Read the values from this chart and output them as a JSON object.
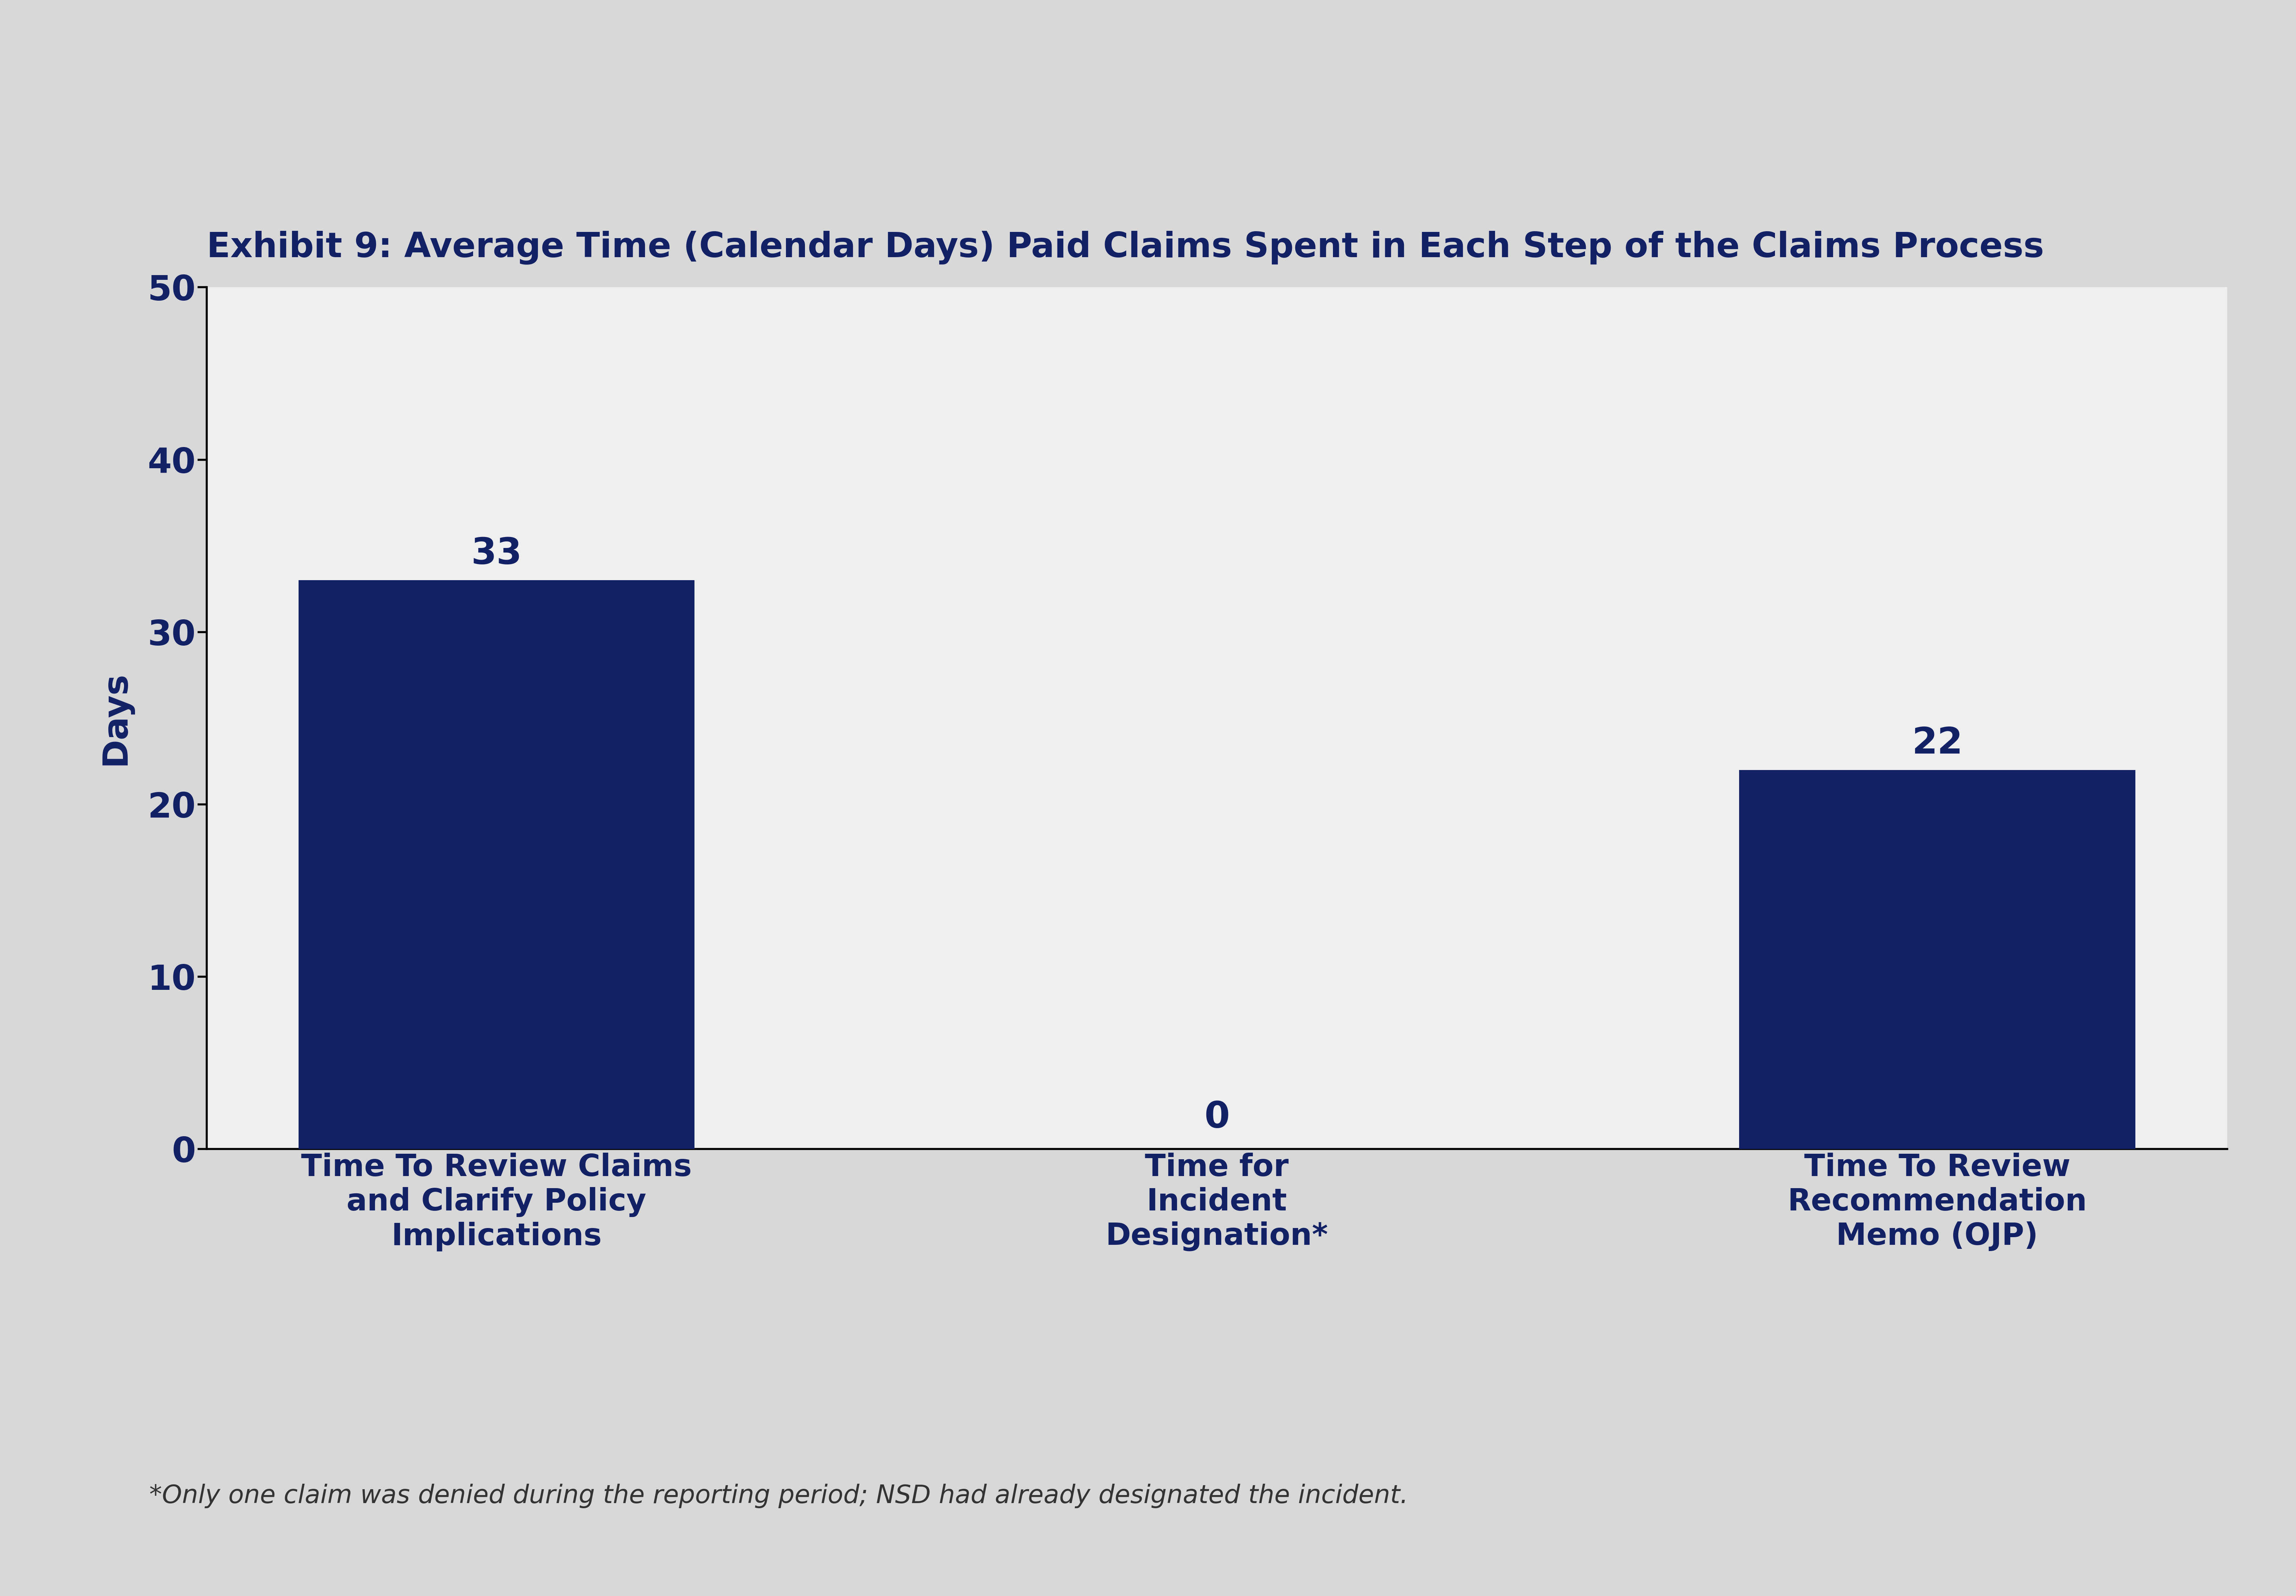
{
  "title": "Exhibit 9: Average Time (Calendar Days) Paid Claims Spent in Each Step of the Claims Process",
  "categories": [
    "Time To Review Claims\nand Clarify Policy\nImplications",
    "Time for\nIncident\nDesignation*",
    "Time To Review\nRecommendation\nMemo (OJP)"
  ],
  "values": [
    33,
    0,
    22
  ],
  "bar_color": "#122166",
  "ylabel": "Days",
  "ylim": [
    0,
    50
  ],
  "yticks": [
    0,
    10,
    20,
    30,
    40,
    50
  ],
  "footnote": "*Only one claim was denied during the reporting period; NSD had already designated the incident.",
  "background_color": "#d8d8d8",
  "plot_bg_color": "#efefef",
  "title_color": "#122166",
  "bar_label_color": "#122166",
  "axis_color": "#122166",
  "tick_color": "#122166",
  "ylabel_color": "#122166",
  "footnote_color": "#333333",
  "title_fontsize": 68,
  "bar_label_fontsize": 72,
  "tick_fontsize": 68,
  "ylabel_fontsize": 68,
  "xtick_fontsize": 60,
  "footnote_fontsize": 50
}
